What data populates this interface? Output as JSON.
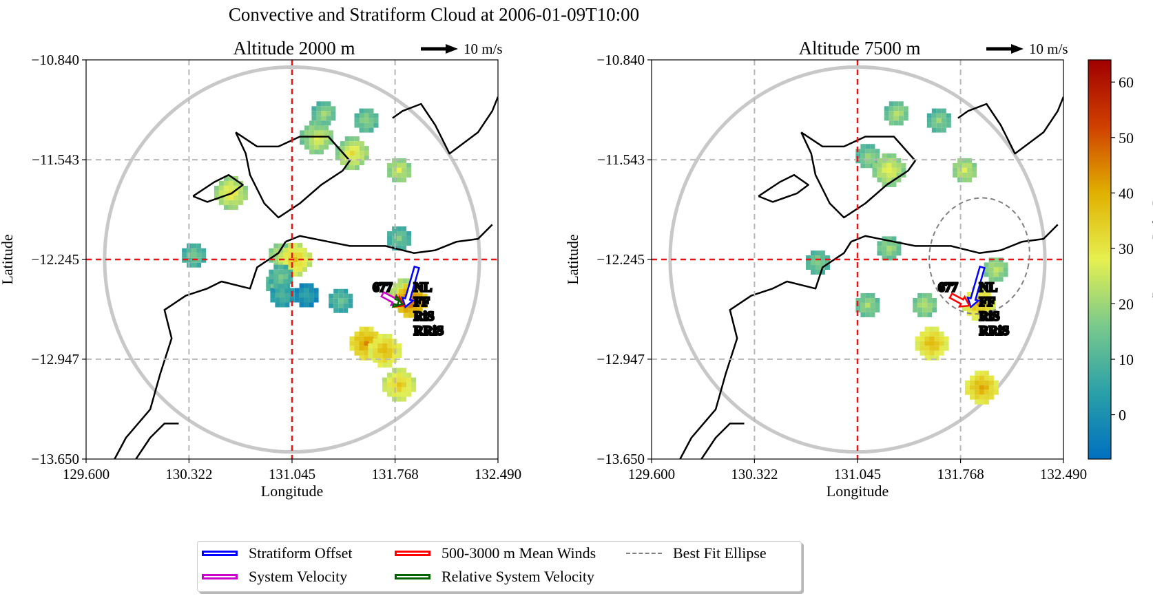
{
  "figure": {
    "title": "Convective and Stratiform Cloud at 2006-01-09T10:00"
  },
  "chart_data": [
    {
      "type": "heatmap",
      "title": "Altitude 2000 m",
      "xlabel": "Longitude",
      "ylabel": "Latitude",
      "xlim": [
        129.6,
        132.49
      ],
      "ylim": [
        -13.65,
        -10.84
      ],
      "xticks": [
        "129.600",
        "130.322",
        "131.045",
        "131.768",
        "132.490"
      ],
      "yticks": [
        "−10.840",
        "−11.543",
        "−12.245",
        "−12.947",
        "−13.650"
      ],
      "grid": true,
      "radar_center": [
        131.045,
        -12.245
      ],
      "wind_scale_label": "10 m/s",
      "system_id": "677",
      "labels": [
        "NL",
        "FF",
        "RiS",
        "RRiS"
      ],
      "echoes": [
        {
          "lon": 131.2,
          "lat": -11.37,
          "dbz": 28
        },
        {
          "lon": 131.25,
          "lat": -11.2,
          "dbz": 20
        },
        {
          "lon": 131.45,
          "lat": -11.48,
          "dbz": 30
        },
        {
          "lon": 131.55,
          "lat": -11.25,
          "dbz": 18
        },
        {
          "lon": 130.6,
          "lat": -11.76,
          "dbz": 30
        },
        {
          "lon": 131.78,
          "lat": -11.6,
          "dbz": 25
        },
        {
          "lon": 130.34,
          "lat": -12.2,
          "dbz": 15
        },
        {
          "lon": 130.95,
          "lat": -12.2,
          "dbz": 24
        },
        {
          "lon": 131.05,
          "lat": -12.23,
          "dbz": 35
        },
        {
          "lon": 131.13,
          "lat": -12.48,
          "dbz": 5
        },
        {
          "lon": 131.37,
          "lat": -12.52,
          "dbz": 13
        },
        {
          "lon": 131.78,
          "lat": -12.08,
          "dbz": 15
        },
        {
          "lon": 131.82,
          "lat": -12.48,
          "dbz": 32
        },
        {
          "lon": 131.86,
          "lat": -12.52,
          "dbz": 47
        },
        {
          "lon": 131.55,
          "lat": -12.82,
          "dbz": 42
        },
        {
          "lon": 131.68,
          "lat": -12.87,
          "dbz": 38
        },
        {
          "lon": 131.78,
          "lat": -13.11,
          "dbz": 35
        },
        {
          "lon": 130.93,
          "lat": -12.4,
          "dbz": 18
        },
        {
          "lon": 130.96,
          "lat": -12.48,
          "dbz": 10
        },
        {
          "lon": 130.95,
          "lat": -12.35,
          "dbz": 15
        }
      ],
      "vectors": {
        "stratiform_offset": {
          "from": [
            131.84,
            -12.58
          ],
          "to": [
            131.92,
            -12.3
          ]
        },
        "mean_winds": {
          "from": [
            131.83,
            -12.57
          ],
          "to": [
            131.7,
            -12.5
          ]
        },
        "system_velocity": {
          "from": [
            131.81,
            -12.56
          ],
          "to": [
            131.68,
            -12.49
          ]
        },
        "relative_system_velocity": {
          "from": [
            131.82,
            -12.56
          ],
          "to": [
            131.79,
            -12.55
          ]
        }
      }
    },
    {
      "type": "heatmap",
      "title": "Altitude 7500 m",
      "xlabel": "Longitude",
      "ylabel": "Latitude",
      "xlim": [
        129.6,
        132.49
      ],
      "ylim": [
        -13.65,
        -10.84
      ],
      "xticks": [
        "129.600",
        "130.322",
        "131.045",
        "131.768",
        "132.490"
      ],
      "yticks": [
        "−10.840",
        "−11.543",
        "−12.245",
        "−12.947",
        "−13.650"
      ],
      "grid": true,
      "radar_center": [
        131.045,
        -12.245
      ],
      "wind_scale_label": "10 m/s",
      "system_id": "677",
      "labels": [
        "NL",
        "FF",
        "RiS",
        "RRiS"
      ],
      "echoes": [
        {
          "lon": 131.1,
          "lat": -11.5,
          "dbz": 20
        },
        {
          "lon": 131.3,
          "lat": -11.2,
          "dbz": 22
        },
        {
          "lon": 131.6,
          "lat": -11.25,
          "dbz": 18
        },
        {
          "lon": 130.75,
          "lat": -12.25,
          "dbz": 17
        },
        {
          "lon": 131.25,
          "lat": -12.15,
          "dbz": 20
        },
        {
          "lon": 131.1,
          "lat": -12.55,
          "dbz": 20
        },
        {
          "lon": 131.5,
          "lat": -12.55,
          "dbz": 22
        },
        {
          "lon": 132.0,
          "lat": -12.3,
          "dbz": 23
        },
        {
          "lon": 131.88,
          "lat": -12.54,
          "dbz": 38
        },
        {
          "lon": 131.55,
          "lat": -12.82,
          "dbz": 38
        },
        {
          "lon": 131.9,
          "lat": -13.13,
          "dbz": 40
        },
        {
          "lon": 131.78,
          "lat": -11.6,
          "dbz": 25
        },
        {
          "lon": 131.25,
          "lat": -11.6,
          "dbz": 28
        }
      ],
      "ellipse": {
        "center": [
          131.9,
          -12.22
        ],
        "semi_axes": [
          0.35,
          0.41
        ],
        "angle_deg": 10
      },
      "vectors": {
        "stratiform_offset": {
          "from": [
            131.84,
            -12.58
          ],
          "to": [
            131.92,
            -12.3
          ]
        },
        "mean_winds": {
          "from": [
            131.83,
            -12.57
          ],
          "to": [
            131.7,
            -12.5
          ]
        }
      }
    }
  ],
  "colorbar": {
    "label": "Reflectivity [DbZ]",
    "range": [
      -8,
      64
    ],
    "ticks": [
      "0",
      "10",
      "20",
      "30",
      "40",
      "50",
      "60"
    ],
    "tick_values": [
      0,
      10,
      20,
      30,
      40,
      50,
      60
    ],
    "colormap": [
      "#0070c0",
      "#2aa0a8",
      "#79c98c",
      "#e6f050",
      "#e0b000",
      "#d04000",
      "#a00000"
    ]
  },
  "legend": {
    "items": [
      {
        "label": "Stratiform Offset",
        "color": "#0000ff"
      },
      {
        "label": "System Velocity",
        "color": "#cc00cc"
      },
      {
        "label": "500-3000 m Mean Winds",
        "color": "#ff0000"
      },
      {
        "label": "Relative System Velocity",
        "color": "#006400"
      },
      {
        "label": "Best Fit Ellipse",
        "color": "#808080"
      }
    ]
  }
}
